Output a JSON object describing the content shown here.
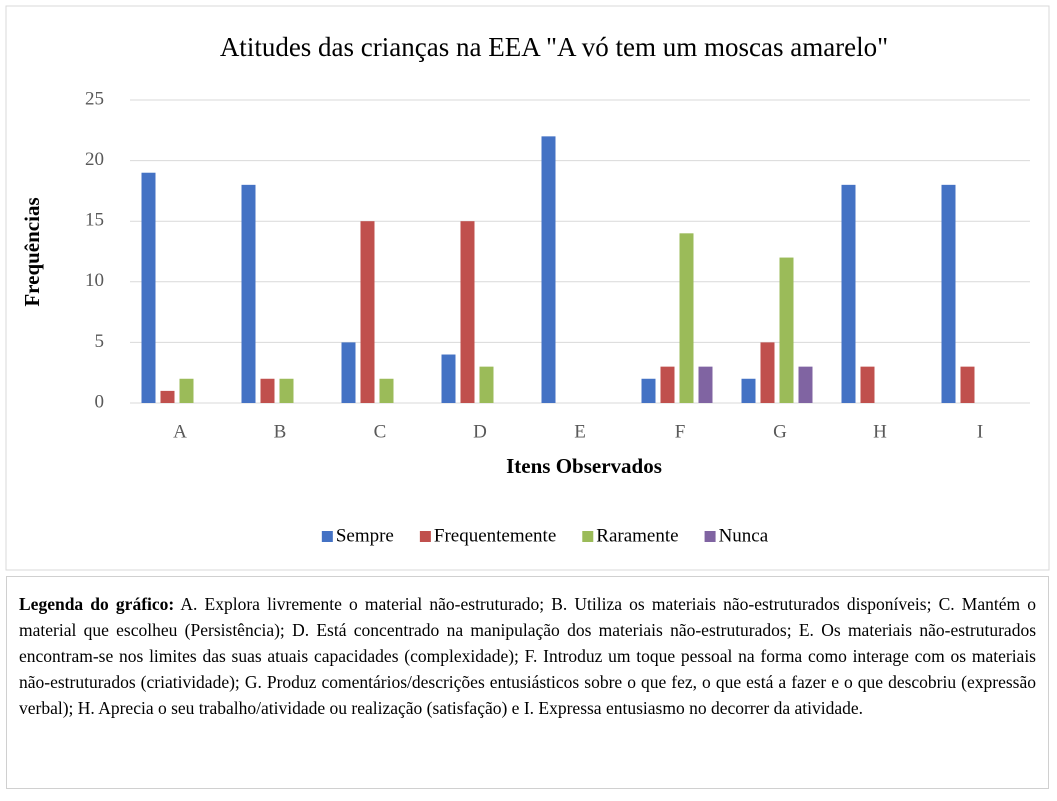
{
  "chart_data": {
    "type": "bar",
    "title": "Atitudes das crianças na EEA \"A vó tem um moscas amarelo\"",
    "x_label": "Itens Observados",
    "y_label": "Frequências",
    "categories": [
      "A",
      "B",
      "C",
      "D",
      "E",
      "F",
      "G",
      "H",
      "I"
    ],
    "series": [
      {
        "name": "Sempre",
        "color": "#4472c4",
        "values": [
          19,
          18,
          5,
          4,
          22,
          2,
          2,
          18,
          18
        ]
      },
      {
        "name": "Frequentemente",
        "color": "#c0504d",
        "values": [
          1,
          2,
          15,
          15,
          0,
          3,
          5,
          3,
          3
        ]
      },
      {
        "name": "Raramente",
        "color": "#9bbb59",
        "values": [
          2,
          2,
          2,
          3,
          0,
          14,
          12,
          0,
          0
        ]
      },
      {
        "name": "Nunca",
        "color": "#8064a2",
        "values": [
          0,
          0,
          0,
          0,
          0,
          3,
          3,
          0,
          0
        ]
      }
    ],
    "ylim": [
      0,
      25
    ],
    "yticks": [
      0,
      5,
      10,
      15,
      20,
      25
    ],
    "grid": true,
    "legend": "bottom"
  },
  "caption": {
    "label": "Legenda do gráfico:",
    "text": "A. Explora livremente o material não-estruturado; B. Utiliza os materiais não-estruturados disponíveis; C. Mantém o material que escolheu (Persistência); D. Está concentrado na manipulação dos materiais não-estruturados; E. Os materiais não-estruturados encontram-se nos limites das suas atuais capacidades (complexidade); F. Introduz um toque pessoal na forma como interage com os materiais não-estruturados (criatividade); G. Produz comentários/descrições entusiásticos sobre o que fez, o que está a fazer e o que descobriu (expressão verbal); H. Aprecia o seu trabalho/atividade ou realização (satisfação) e I. Expressa entusiasmo no decorrer da atividade."
  }
}
